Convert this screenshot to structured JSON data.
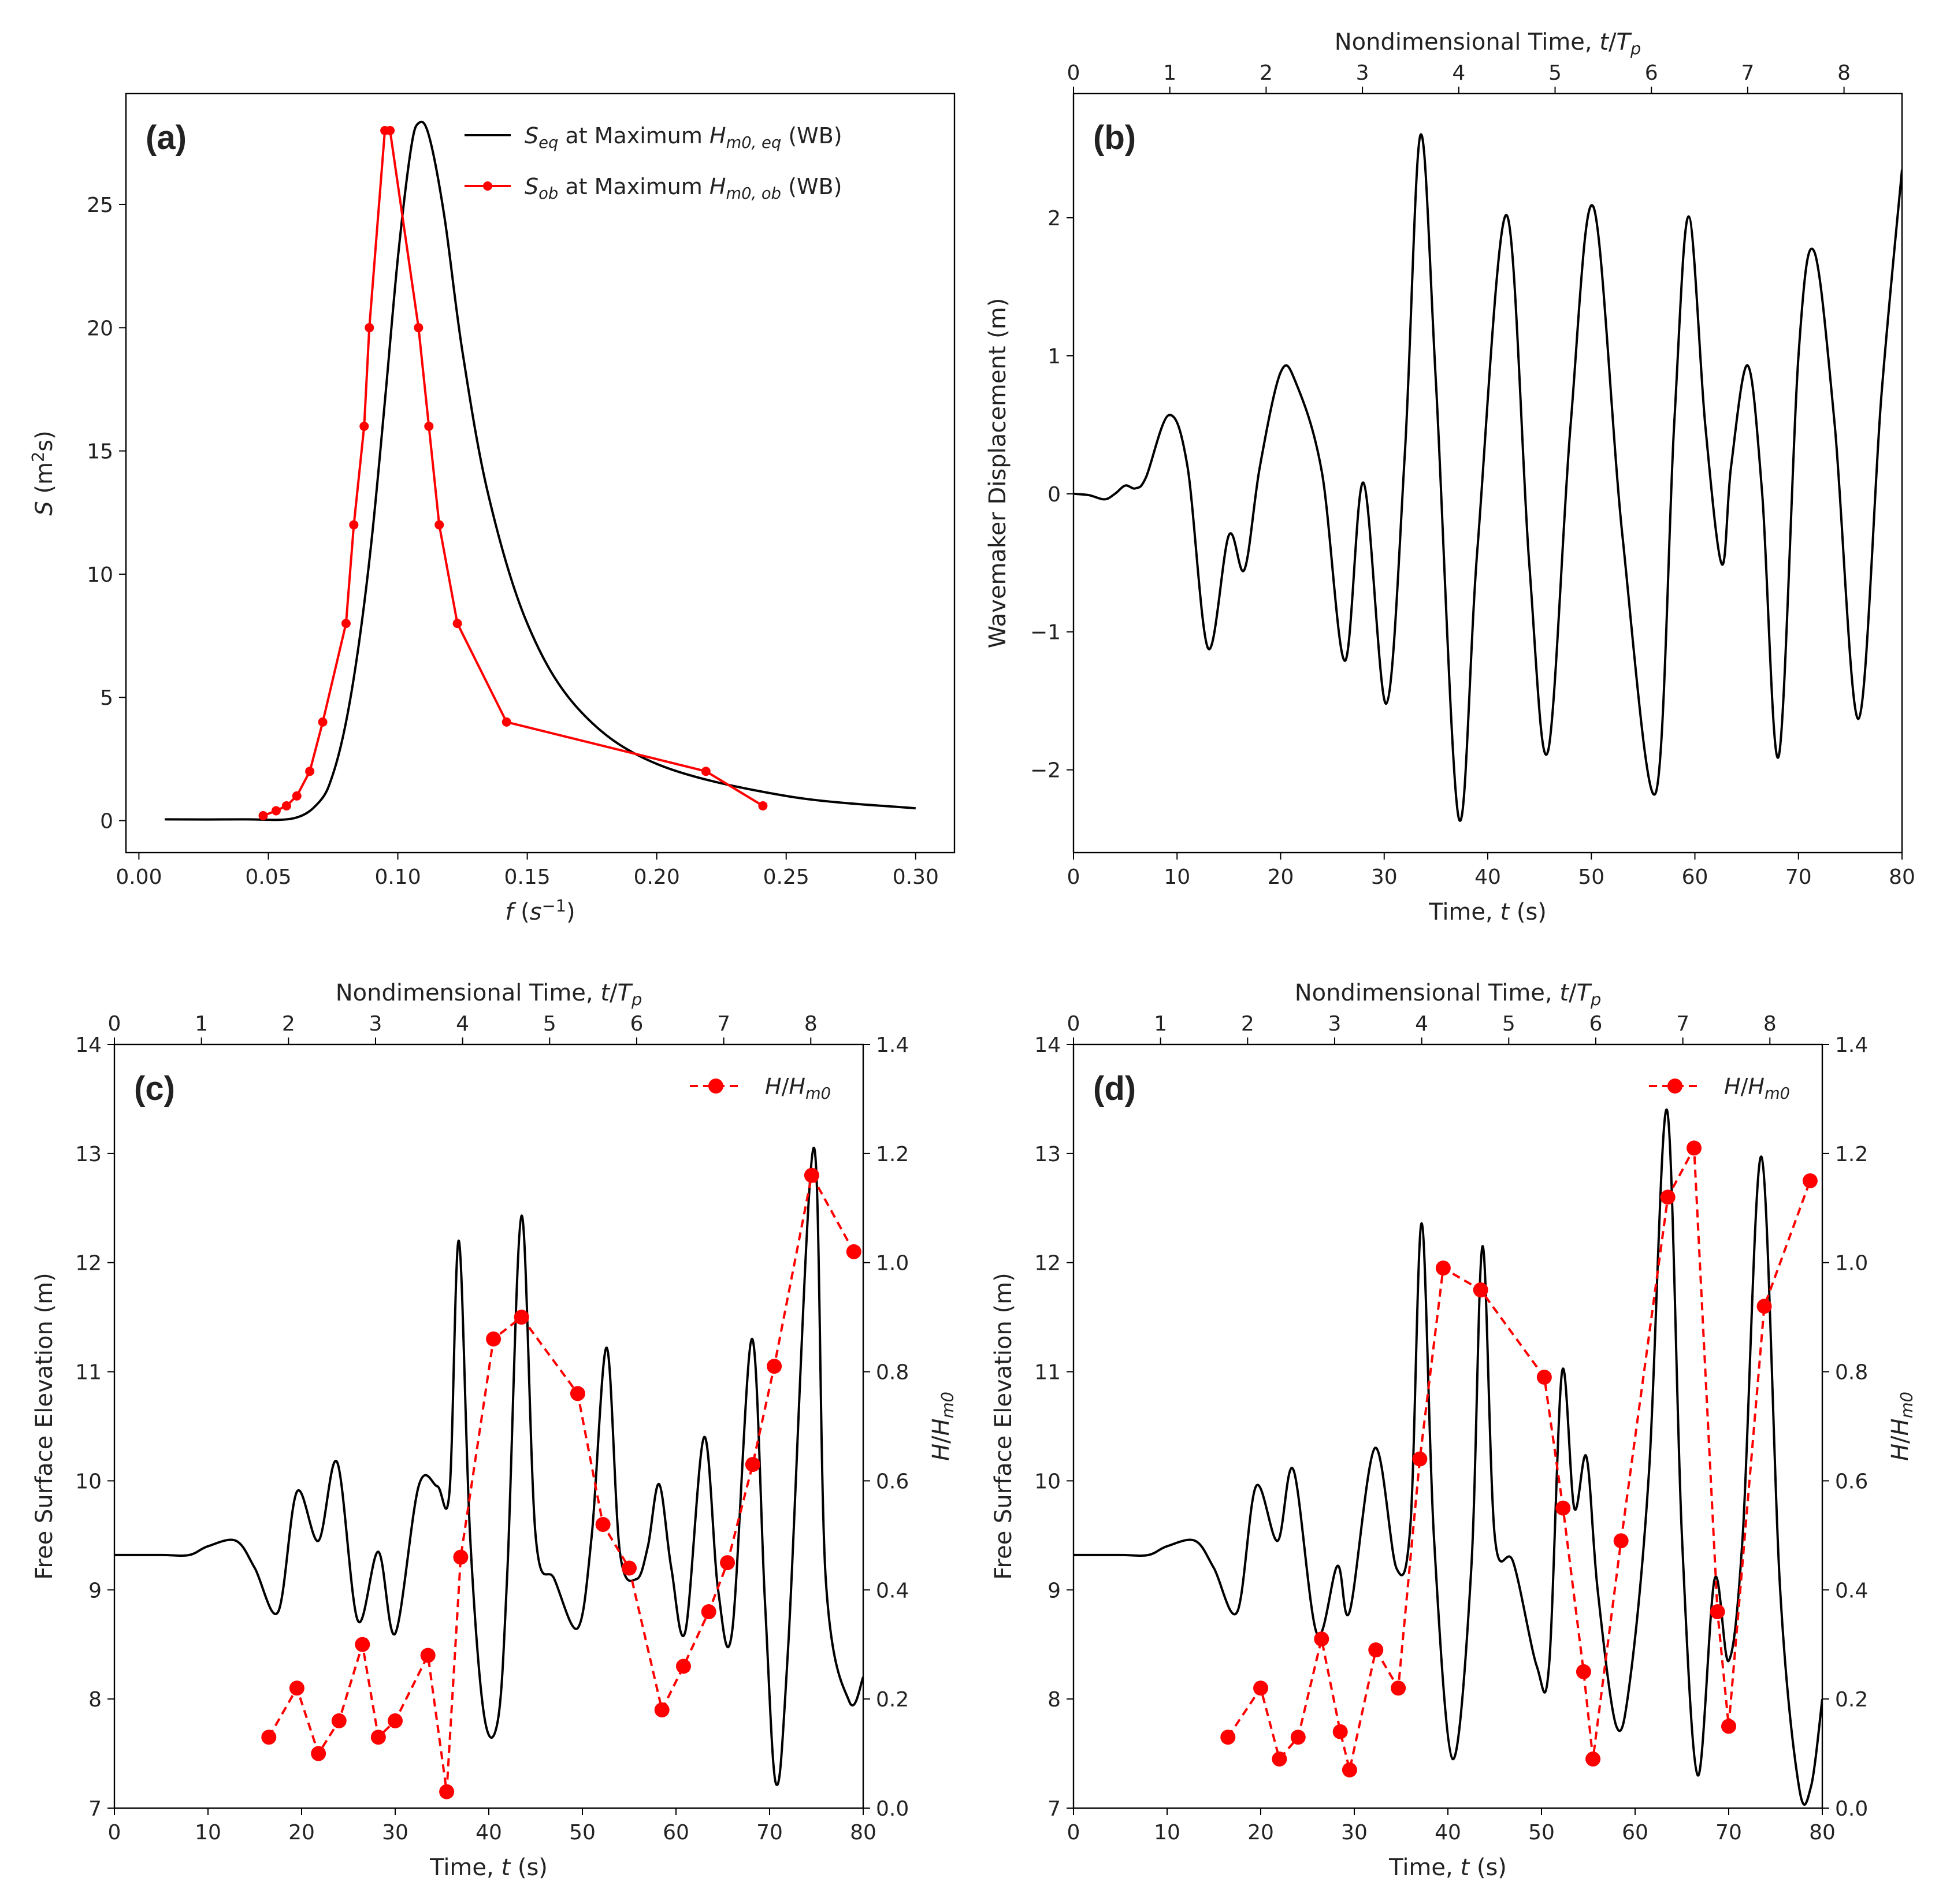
{
  "chart_data": [
    {
      "panel": "a",
      "type": "line",
      "panel_label": "(a)",
      "xlabel": "f (s⁻¹)",
      "ylabel": "S (m²s)",
      "xlim": [
        -0.005,
        0.315
      ],
      "ylim": [
        -1.3,
        29.5
      ],
      "xticks": [
        0.0,
        0.05,
        0.1,
        0.15,
        0.2,
        0.25,
        0.3
      ],
      "xtick_labels": [
        "0.00",
        "0.05",
        "0.10",
        "0.15",
        "0.20",
        "0.25",
        "0.30"
      ],
      "yticks": [
        0,
        5,
        10,
        15,
        20,
        25
      ],
      "ytick_labels": [
        "0",
        "5",
        "10",
        "15",
        "20",
        "25"
      ],
      "legend_position": "top-right",
      "series": [
        {
          "name": "S_eq at Maximum H_m0,eq (WB)",
          "color": "#000000",
          "marker": "none",
          "dash": "solid",
          "x": [
            0.01,
            0.04,
            0.06,
            0.07,
            0.075,
            0.08,
            0.085,
            0.09,
            0.095,
            0.1,
            0.105,
            0.108,
            0.112,
            0.118,
            0.125,
            0.135,
            0.15,
            0.17,
            0.2,
            0.25,
            0.3
          ],
          "y": [
            0.05,
            0.05,
            0.1,
            0.8,
            1.9,
            4.0,
            7.2,
            11.5,
            17.0,
            22.8,
            27.2,
            28.3,
            27.8,
            24.5,
            19.0,
            13.2,
            8.0,
            4.5,
            2.3,
            1.0,
            0.5
          ]
        },
        {
          "name": "S_ob at Maximum H_m0,ob (WB)",
          "color": "#ff0000",
          "marker": "circle",
          "dash": "solid",
          "x": [
            0.048,
            0.053,
            0.057,
            0.061,
            0.066,
            0.071,
            0.08,
            0.083,
            0.087,
            0.089,
            0.095,
            0.097,
            0.108,
            0.112,
            0.116,
            0.123,
            0.142,
            0.219,
            0.241
          ],
          "y": [
            0.2,
            0.4,
            0.6,
            1.0,
            2.0,
            4.0,
            8.0,
            12.0,
            16.0,
            20.0,
            28.0,
            28.0,
            20.0,
            16.0,
            12.0,
            8.0,
            4.0,
            2.0,
            0.6
          ]
        }
      ]
    },
    {
      "panel": "b",
      "type": "line",
      "panel_label": "(b)",
      "xlabel": "Time, t (s)",
      "x2label": "Nondimensional Time, t/T_p",
      "ylabel": "Wavemaker Displacement (m)",
      "xlim": [
        0,
        80
      ],
      "ylim": [
        -2.6,
        2.9
      ],
      "xticks": [
        0,
        10,
        20,
        30,
        40,
        50,
        60,
        70,
        80
      ],
      "xtick_labels": [
        "0",
        "10",
        "20",
        "30",
        "40",
        "50",
        "60",
        "70",
        "80"
      ],
      "yticks": [
        -2,
        -1,
        0,
        1,
        2
      ],
      "ytick_labels": [
        "−2",
        "−1",
        "0",
        "1",
        "2"
      ],
      "x2ticks": [
        0,
        1,
        2,
        3,
        4,
        5,
        6,
        7,
        8
      ],
      "x2tick_labels": [
        "0",
        "1",
        "2",
        "3",
        "4",
        "5",
        "6",
        "7",
        "8"
      ],
      "x2_seconds_per_unit": 9.3,
      "series": [
        {
          "name": "",
          "color": "#000000",
          "marker": "none",
          "dash": "solid",
          "x": [
            0,
            1.5,
            3,
            4,
            5,
            6,
            7,
            9.2,
            11,
            13,
            15,
            16.5,
            18,
            20,
            21.5,
            24,
            26.2,
            28,
            30.2,
            32,
            33.5,
            35,
            37.2,
            39,
            41.8,
            44,
            45.8,
            48,
            50.2,
            53,
            56.2,
            58,
            59.4,
            61,
            62.6,
            63.5,
            65.1,
            66.5,
            68.1,
            70,
            71.5,
            73.5,
            75.8,
            78,
            80
          ],
          "y": [
            0,
            -0.01,
            -0.04,
            0.0,
            0.06,
            0.04,
            0.12,
            0.57,
            0.2,
            -1.12,
            -0.3,
            -0.55,
            0.2,
            0.88,
            0.8,
            0.15,
            -1.21,
            0.08,
            -1.52,
            0.3,
            2.6,
            0.8,
            -2.35,
            -0.4,
            2.02,
            -0.5,
            -1.87,
            0.5,
            2.08,
            -0.3,
            -2.17,
            0.5,
            2.01,
            0.5,
            -0.51,
            0.2,
            0.93,
            0.0,
            -1.9,
            1.0,
            1.76,
            0.5,
            -1.63,
            0.7,
            2.35
          ]
        }
      ]
    },
    {
      "panel": "c",
      "type": "line",
      "panel_label": "(c)",
      "xlabel": "Time, t (s)",
      "x2label": "Nondimensional Time, t/T_p",
      "ylabel": "Free Surface Elevation (m)",
      "y2label": "H/H_m0",
      "xlim": [
        0,
        80
      ],
      "ylim": [
        7,
        14
      ],
      "y2lim": [
        0,
        1.4
      ],
      "xticks": [
        0,
        10,
        20,
        30,
        40,
        50,
        60,
        70,
        80
      ],
      "xtick_labels": [
        "0",
        "10",
        "20",
        "30",
        "40",
        "50",
        "60",
        "70",
        "80"
      ],
      "yticks": [
        7,
        8,
        9,
        10,
        11,
        12,
        13,
        14
      ],
      "ytick_labels": [
        "7",
        "8",
        "9",
        "10",
        "11",
        "12",
        "13",
        "14"
      ],
      "y2ticks": [
        0,
        0.2,
        0.4,
        0.6,
        0.8,
        1.0,
        1.2,
        1.4
      ],
      "y2tick_labels": [
        "0.0",
        "0.2",
        "0.4",
        "0.6",
        "0.8",
        "1.0",
        "1.2",
        "1.4"
      ],
      "x2ticks": [
        0,
        1,
        2,
        3,
        4,
        5,
        6,
        7,
        8
      ],
      "x2tick_labels": [
        "0",
        "1",
        "2",
        "3",
        "4",
        "5",
        "6",
        "7",
        "8"
      ],
      "x2_seconds_per_unit": 9.3,
      "legend_position": "top-right",
      "series": [
        {
          "name": "",
          "axis": "left",
          "color": "#000000",
          "marker": "none",
          "dash": "solid",
          "x": [
            0,
            5,
            8,
            10,
            13,
            15,
            17.5,
            19.5,
            21.8,
            23.8,
            26,
            28.2,
            30,
            32.5,
            34.5,
            35.8,
            36.8,
            38,
            39.5,
            41,
            42,
            43.5,
            45,
            47,
            49.5,
            51,
            52.6,
            54,
            55.8,
            57,
            58.2,
            59.5,
            61,
            63,
            64.5,
            66,
            68.1,
            69.5,
            70.7,
            72,
            74.7,
            76,
            78.5,
            80
          ],
          "y": [
            9.32,
            9.32,
            9.32,
            9.4,
            9.45,
            9.2,
            8.8,
            9.9,
            9.45,
            10.17,
            8.72,
            9.35,
            8.6,
            9.95,
            9.95,
            9.9,
            12.2,
            9.5,
            7.85,
            7.82,
            9.2,
            12.43,
            9.5,
            9.1,
            8.65,
            9.5,
            11.22,
            9.35,
            9.1,
            9.4,
            9.97,
            9.2,
            8.62,
            10.4,
            9.0,
            8.62,
            11.3,
            8.9,
            7.22,
            8.5,
            13.05,
            9.1,
            7.98,
            8.2
          ]
        },
        {
          "name": "H/H_m0",
          "axis": "right",
          "color": "#ff0000",
          "marker": "circle",
          "dash": "dashed",
          "x": [
            16.5,
            19.5,
            21.8,
            24,
            26.5,
            28.2,
            30,
            33.5,
            35.5,
            37,
            40.5,
            43.5,
            49.5,
            52.2,
            55,
            58.5,
            60.8,
            63.5,
            65.5,
            68.2,
            70.5,
            74.5,
            79
          ],
          "y": [
            0.13,
            0.22,
            0.1,
            0.16,
            0.3,
            0.13,
            0.16,
            0.28,
            0.03,
            0.46,
            0.86,
            0.9,
            0.76,
            0.52,
            0.44,
            0.18,
            0.26,
            0.36,
            0.45,
            0.63,
            0.81,
            1.16,
            1.02
          ]
        }
      ]
    },
    {
      "panel": "d",
      "type": "line",
      "panel_label": "(d)",
      "xlabel": "Time, t (s)",
      "x2label": "Nondimensional Time, t/T_p",
      "ylabel": "Free Surface Elevation (m)",
      "y2label": "H/H_m0",
      "xlim": [
        0,
        80
      ],
      "ylim": [
        7,
        14
      ],
      "y2lim": [
        0,
        1.4
      ],
      "xticks": [
        0,
        10,
        20,
        30,
        40,
        50,
        60,
        70,
        80
      ],
      "xtick_labels": [
        "0",
        "10",
        "20",
        "30",
        "40",
        "50",
        "60",
        "70",
        "80"
      ],
      "yticks": [
        7,
        8,
        9,
        10,
        11,
        12,
        13,
        14
      ],
      "ytick_labels": [
        "7",
        "8",
        "9",
        "10",
        "11",
        "12",
        "13",
        "14"
      ],
      "y2ticks": [
        0,
        0.2,
        0.4,
        0.6,
        0.8,
        1.0,
        1.2,
        1.4
      ],
      "y2tick_labels": [
        "0.0",
        "0.2",
        "0.4",
        "0.6",
        "0.8",
        "1.0",
        "1.2",
        "1.4"
      ],
      "x2ticks": [
        0,
        1,
        2,
        3,
        4,
        5,
        6,
        7,
        8
      ],
      "x2tick_labels": [
        "0",
        "1",
        "2",
        "3",
        "4",
        "5",
        "6",
        "7",
        "8"
      ],
      "x2_seconds_per_unit": 9.3,
      "legend_position": "top-right",
      "series": [
        {
          "name": "",
          "axis": "left",
          "color": "#000000",
          "marker": "none",
          "dash": "solid",
          "x": [
            0,
            5,
            8,
            10,
            13,
            15,
            17.5,
            19.5,
            21.8,
            23.5,
            26,
            28.2,
            29.5,
            32.2,
            34.5,
            36,
            37.2,
            38.5,
            40.5,
            42.5,
            43.7,
            45,
            47,
            49.5,
            50.8,
            52.2,
            53.5,
            54.8,
            56,
            58,
            59.5,
            61.5,
            63.4,
            65,
            66.7,
            68.5,
            70,
            71.5,
            73.5,
            75.5,
            77.5,
            78.8,
            80
          ],
          "y": [
            9.32,
            9.32,
            9.32,
            9.4,
            9.45,
            9.2,
            8.8,
            9.95,
            9.45,
            10.1,
            8.6,
            9.22,
            8.8,
            10.3,
            9.2,
            9.6,
            12.36,
            9.5,
            7.45,
            9.2,
            12.15,
            9.5,
            9.25,
            8.3,
            8.3,
            11.0,
            9.75,
            10.22,
            9.0,
            7.75,
            8.2,
            10.1,
            13.4,
            9.5,
            7.3,
            9.1,
            8.35,
            9.5,
            12.97,
            9.0,
            7.2,
            7.2,
            8.0
          ]
        },
        {
          "name": "H/H_m0",
          "axis": "right",
          "color": "#ff0000",
          "marker": "circle",
          "dash": "dashed",
          "x": [
            16.5,
            20,
            22,
            24,
            26.5,
            28.5,
            29.5,
            32.3,
            34.7,
            37,
            39.5,
            43.5,
            50.3,
            52.3,
            54.5,
            55.5,
            58.5,
            63.5,
            66.3,
            68.8,
            70,
            73.8,
            78.7
          ],
          "y": [
            0.13,
            0.22,
            0.09,
            0.13,
            0.31,
            0.14,
            0.07,
            0.29,
            0.22,
            0.64,
            0.99,
            0.95,
            0.79,
            0.55,
            0.25,
            0.09,
            0.49,
            1.12,
            1.21,
            0.36,
            0.15,
            0.92,
            1.15
          ]
        }
      ]
    }
  ]
}
